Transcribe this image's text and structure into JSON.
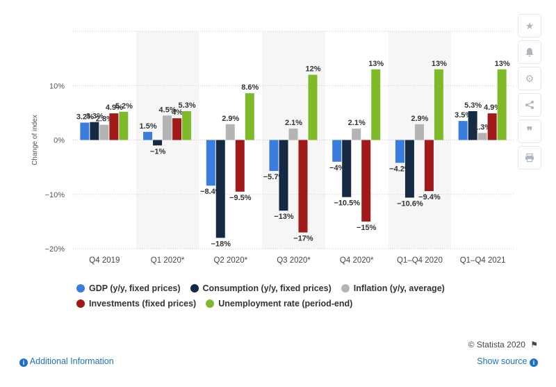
{
  "chart_data": {
    "type": "bar",
    "ylabel": "Change of index",
    "ylim": [
      -20,
      20
    ],
    "yticks": [
      -20,
      -10,
      0,
      10
    ],
    "ytick_labels": [
      "−20%",
      "−10%",
      "0%",
      "10%"
    ],
    "grid": true,
    "legend_position": "bottom",
    "categories": [
      "Q4 2019",
      "Q1 2020*",
      "Q2 2020*",
      "Q3 2020*",
      "Q4 2020*",
      "Q1–Q4 2020",
      "Q1–Q4 2021"
    ],
    "shaded_categories": [
      1,
      3,
      5
    ],
    "series": [
      {
        "name": "GDP (y/y, fixed prices)",
        "color": "#3b7ddd",
        "values": [
          3.2,
          1.5,
          -8.4,
          -5.7,
          -4,
          -4.2,
          3.5
        ],
        "labels": [
          "3.2%",
          "1.5%",
          "−8.4%",
          "−5.7%",
          "−4%",
          "−4.2%",
          "3.5%"
        ]
      },
      {
        "name": "Consumption (y/y, fixed prices)",
        "color": "#152a45",
        "values": [
          3.3,
          -1,
          -18,
          -13,
          -10.5,
          -10.6,
          5.3
        ],
        "labels": [
          "3.3%",
          "−1%",
          "−18%",
          "−13%",
          "−10.5%",
          "−10.6%",
          "5.3%"
        ]
      },
      {
        "name": "Inflation (y/y, average)",
        "color": "#b4b4b4",
        "values": [
          2.8,
          4.5,
          2.9,
          2.1,
          2.1,
          2.9,
          1.3
        ],
        "labels": [
          "2.8%",
          "4.5%",
          "2.9%",
          "2.1%",
          "2.1%",
          "2.9%",
          "1.3%"
        ]
      },
      {
        "name": "Investments (fixed prices)",
        "color": "#a11a1a",
        "values": [
          4.9,
          4,
          -9.5,
          -17,
          -15,
          -9.4,
          4.9
        ],
        "labels": [
          "4.9%",
          "4%",
          "−9.5%",
          "−17%",
          "−15%",
          "−9.4%",
          "4.9%"
        ]
      },
      {
        "name": "Unemployment rate (period-end)",
        "color": "#7fba2a",
        "values": [
          5.2,
          5.3,
          8.6,
          12,
          13,
          13,
          13
        ],
        "labels": [
          "5.2%",
          "5.3%",
          "8.6%",
          "12%",
          "13%",
          "13%",
          "13%"
        ]
      }
    ]
  },
  "legend": {
    "gdp": "GDP (y/y, fixed prices)",
    "consumption": "Consumption (y/y, fixed prices)",
    "inflation": "Inflation (y/y, average)",
    "investments": "Investments (fixed prices)",
    "unemployment": "Unemployment rate (period-end)"
  },
  "footer": {
    "copyright": "© Statista 2020",
    "additional_info": "Additional Information",
    "show_source": "Show source"
  },
  "sidebar": {
    "icons": [
      "star-icon",
      "bell-icon",
      "gear-icon",
      "share-icon",
      "quote-icon",
      "print-icon"
    ]
  }
}
